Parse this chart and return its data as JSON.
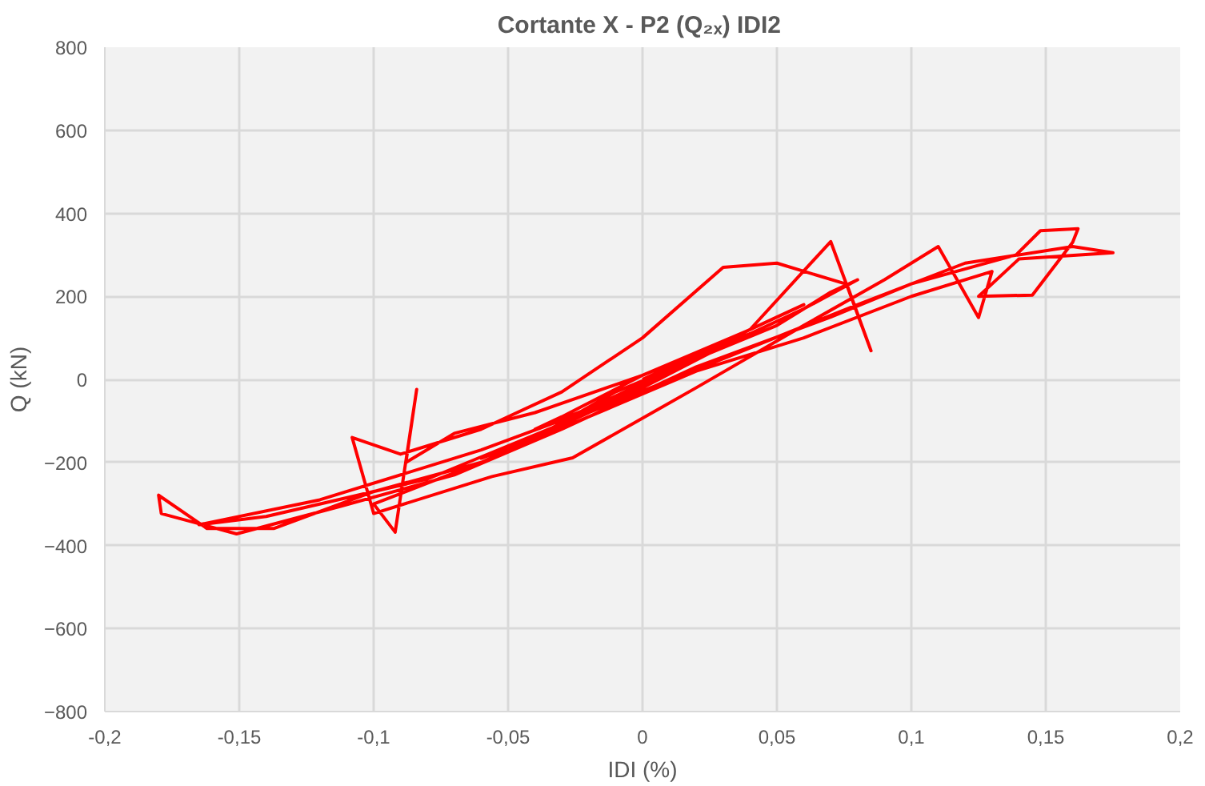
{
  "chart_data": {
    "type": "line",
    "title": "Cortante X - P2 (Q₂ₓ)  IDI2",
    "xlabel": "IDI (%)",
    "ylabel": "Q (kN)",
    "xlim": [
      -0.2,
      0.2
    ],
    "xticks": [
      {
        "value": -0.2,
        "label": "-0,2"
      },
      {
        "value": -0.15,
        "label": "-0,15"
      },
      {
        "value": -0.1,
        "label": "-0,1"
      },
      {
        "value": -0.05,
        "label": "-0,05"
      },
      0,
      {
        "value": 0.05,
        "label": "0,05"
      },
      {
        "value": 0.1,
        "label": "0,1"
      },
      {
        "value": 0.15,
        "label": "0,15"
      },
      {
        "value": 0.2,
        "label": "0,2"
      }
    ],
    "ylim": [
      -800,
      800
    ],
    "yticks": [
      -800,
      -600,
      -400,
      -200,
      0,
      200,
      400,
      600,
      800
    ],
    "grid": true,
    "marker": "none",
    "line_style": "solid",
    "x": [
      0,
      0.02,
      0.04,
      0.03,
      0,
      -0.02,
      -0.04,
      -0.03,
      0,
      0.03,
      0.05,
      0.06,
      0.04,
      0.01,
      -0.02,
      -0.05,
      -0.06,
      -0.04,
      -0.01,
      0.02,
      0.05,
      0.07,
      0.08,
      0.06,
      0.03,
      0,
      -0.03,
      -0.06,
      -0.08,
      -0.1,
      -0.092,
      -0.084,
      -0.088,
      -0.07,
      -0.04,
      0,
      0.04,
      0.07,
      0.085,
      0.076,
      0.05,
      0.03,
      0,
      -0.03,
      -0.06,
      -0.09,
      -0.108,
      -0.1,
      -0.056,
      -0.026,
      0.02,
      0.06,
      0.09,
      0.11,
      0.125,
      0.13,
      0.1,
      0.06,
      0.02,
      -0.02,
      -0.06,
      -0.1,
      -0.137,
      -0.162,
      -0.18,
      -0.179,
      -0.151,
      -0.112,
      -0.07,
      -0.03,
      0.02,
      0.07,
      0.1,
      0.139,
      0.148,
      0.162,
      0.16,
      0.145,
      0.125,
      0.14,
      0.175,
      0.16,
      0.12,
      0.08,
      0.03,
      -0.02,
      -0.08,
      -0.14,
      -0.165,
      -0.12,
      -0.06,
      -0.01,
      0.01
    ],
    "series": [
      {
        "color": "#ff0000",
        "values": [
          0,
          60,
          110,
          80,
          -10,
          -70,
          -120,
          -90,
          10,
          90,
          150,
          180,
          120,
          20,
          -80,
          -160,
          -190,
          -140,
          -30,
          50,
          130,
          210,
          240,
          170,
          80,
          -20,
          -110,
          -200,
          -250,
          -300,
          -368,
          -24,
          -200,
          -130,
          -80,
          10,
          120,
          332,
          69,
          229,
          280,
          270,
          100,
          -30,
          -120,
          -180,
          -140,
          -323,
          -234,
          -189,
          -20,
          130,
          240,
          320,
          149,
          260,
          200,
          100,
          20,
          -90,
          -200,
          -270,
          -359,
          -359,
          -279,
          -323,
          -372,
          -305,
          -230,
          -120,
          30,
          150,
          230,
          300,
          358,
          363,
          330,
          203,
          200,
          290,
          305,
          320,
          280,
          180,
          50,
          -80,
          -240,
          -330,
          -350,
          -290,
          -170,
          -50,
          20
        ]
      }
    ]
  }
}
